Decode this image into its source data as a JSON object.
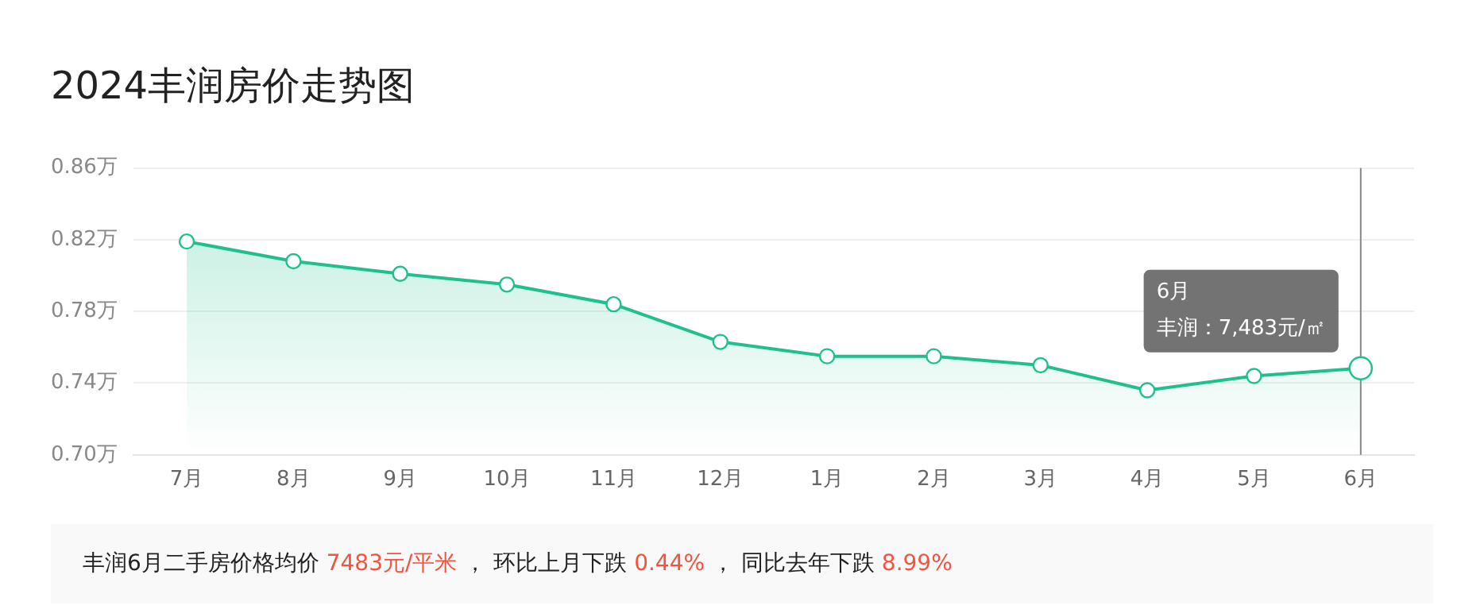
{
  "chart_data": {
    "type": "area",
    "title": "2024丰润房价走势图",
    "categories": [
      "7月",
      "8月",
      "9月",
      "10月",
      "11月",
      "12月",
      "1月",
      "2月",
      "3月",
      "4月",
      "5月",
      "6月"
    ],
    "series": [
      {
        "color": "#1fc08e",
        "values": [
          0.819,
          0.808,
          0.801,
          0.795,
          0.784,
          0.763,
          0.755,
          0.755,
          0.75,
          0.736,
          0.744,
          0.7483
        ]
      }
    ],
    "ylim": [
      0.7,
      0.86
    ],
    "yticks": [
      {
        "value": 0.7,
        "label": "0.70万"
      },
      {
        "value": 0.74,
        "label": "0.74万"
      },
      {
        "value": 0.78,
        "label": "0.78万"
      },
      {
        "value": 0.82,
        "label": "0.82万"
      },
      {
        "value": 0.86,
        "label": "0.86万"
      }
    ],
    "grid": "y",
    "legend": false,
    "marker": "circle",
    "ref_lines": [
      {
        "axis": "x",
        "value": "6月",
        "color": "#888888"
      }
    ],
    "annotations": [
      {
        "text": "丰润：7,483元/㎡",
        "x": "6月",
        "y": 0.7483
      },
      "丰润6月二手房价格均价 7483元/平米 ， 环比上月下跌 0.44% ， 同比去年下跌 8.99%"
    ]
  }
}
